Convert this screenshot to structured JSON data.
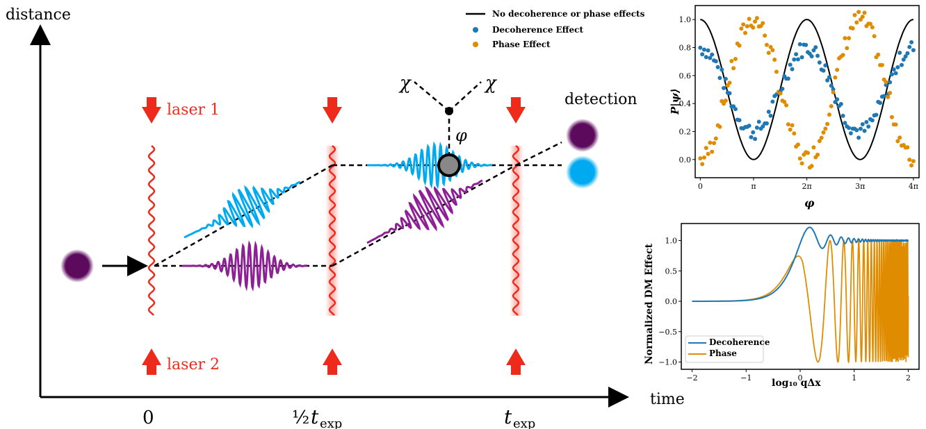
{
  "diagram": {
    "y_axis_label": "distance",
    "x_axis_label": "time",
    "laser1": "laser 1",
    "laser2": "laser 2",
    "detection": "detection",
    "chi": "χ",
    "phi": "φ",
    "t0": "0",
    "t_half_prefix": "½",
    "t_half": "t",
    "t_exp": "t",
    "exp_sub": "exp",
    "colors": {
      "purple": "#5b0a5c",
      "blue": "#00aaf0",
      "red": "#ee2a1b",
      "wave_purple": "#8e2096"
    }
  },
  "legend": {
    "items": [
      {
        "label": "No decoherence or phase effects",
        "color": "#000000",
        "kind": "line"
      },
      {
        "label": "Decoherence Effect",
        "color": "#1f77b4",
        "kind": "dot"
      },
      {
        "label": "Phase Effect",
        "color": "#e08c00",
        "kind": "dot"
      }
    ]
  },
  "chart_data": [
    {
      "type": "scatter",
      "ylabel": "P|ψ⟩",
      "xlabel": "φ",
      "xticks": [
        "0",
        "π",
        "2π",
        "3π",
        "4π"
      ],
      "yticks": [
        "0.0",
        "0.2",
        "0.4",
        "0.6",
        "0.8",
        "1.0"
      ],
      "xlim": [
        -0.3,
        12.9
      ],
      "ylim": [
        -0.13,
        1.1
      ],
      "series": [
        {
          "name": "No decoherence or phase effects",
          "color": "#000000",
          "shape": "line",
          "formula": "(1+cos(phi))/2",
          "x_range": [
            0,
            12.566
          ]
        },
        {
          "name": "Decoherence Effect",
          "color": "#1f77b4",
          "shape": "dots",
          "formula": "0.5+0.3*cos(phi) with noise",
          "x_range": [
            0,
            12.566
          ]
        },
        {
          "name": "Phase Effect",
          "color": "#e08c00",
          "shape": "dots",
          "formula": "(1+cos(phi+pi))/2 with noise",
          "x_range": [
            0,
            12.566
          ]
        }
      ]
    },
    {
      "type": "line",
      "ylabel": "Normalized DM Effect",
      "xlabel": "log₁₀ qΔx",
      "xticks": [
        "−2",
        "−1",
        "0",
        "1",
        "2"
      ],
      "yticks": [
        "−1.0",
        "−0.5",
        "0.0",
        "0.5",
        "1.0"
      ],
      "xlim": [
        -2.2,
        2.2
      ],
      "ylim": [
        -1.12,
        1.28
      ],
      "series": [
        {
          "name": "Decoherence",
          "color": "#1f77b4"
        },
        {
          "name": "Phase",
          "color": "#e08c00"
        }
      ]
    }
  ]
}
